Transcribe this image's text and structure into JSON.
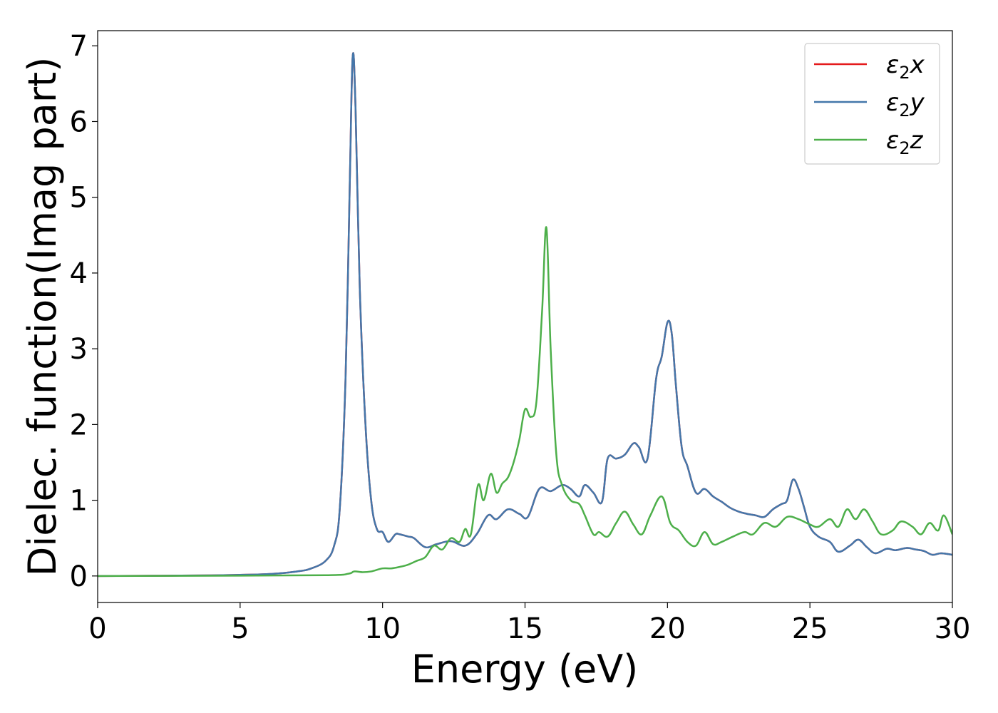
{
  "chart_data": {
    "type": "line",
    "title": "",
    "xlabel": "Energy (eV)",
    "ylabel": "Dielec. function(Imag part)",
    "xlim": [
      0,
      30
    ],
    "ylim": [
      -0.35,
      7.2
    ],
    "xticks": [
      0,
      5,
      10,
      15,
      20,
      25,
      30
    ],
    "yticks": [
      0,
      1,
      2,
      3,
      4,
      5,
      6,
      7
    ],
    "grid": false,
    "legend_position": "top-right",
    "series": [
      {
        "name": "ε₂x",
        "legend_main": "ε",
        "legend_sub": "2",
        "legend_tail": "x",
        "color": "#e41a1c",
        "x": [
          0,
          2,
          4,
          5,
          6,
          7,
          7.5,
          8,
          8.3,
          8.5,
          8.7,
          8.85,
          8.95,
          9.05,
          9.2,
          9.4,
          9.6,
          9.8,
          10.0,
          10.2,
          10.45,
          10.6,
          10.9,
          11.1,
          11.5,
          11.9,
          12.4,
          12.9,
          13.3,
          13.7,
          14.0,
          14.4,
          14.8,
          15.1,
          15.5,
          15.9,
          16.3,
          16.6,
          16.9,
          17.1,
          17.4,
          17.7,
          17.9,
          18.2,
          18.5,
          18.8,
          19.0,
          19.3,
          19.6,
          19.8,
          20.0,
          20.15,
          20.3,
          20.5,
          20.7,
          21.0,
          21.3,
          21.6,
          21.9,
          22.2,
          22.5,
          22.8,
          23.1,
          23.4,
          23.7,
          24.0,
          24.2,
          24.4,
          24.6,
          24.8,
          25.0,
          25.3,
          25.7,
          26.0,
          26.4,
          26.7,
          27.0,
          27.3,
          27.7,
          28.0,
          28.4,
          28.7,
          29.0,
          29.3,
          29.6,
          30.0
        ],
        "y": [
          0,
          0.003,
          0.008,
          0.015,
          0.025,
          0.06,
          0.1,
          0.2,
          0.4,
          0.9,
          2.6,
          5.2,
          6.85,
          6.2,
          3.8,
          2.0,
          1.0,
          0.62,
          0.58,
          0.45,
          0.55,
          0.55,
          0.52,
          0.5,
          0.38,
          0.42,
          0.46,
          0.4,
          0.55,
          0.8,
          0.75,
          0.88,
          0.82,
          0.78,
          1.15,
          1.12,
          1.2,
          1.15,
          1.05,
          1.2,
          1.1,
          0.98,
          1.55,
          1.55,
          1.6,
          1.75,
          1.7,
          1.55,
          2.6,
          2.9,
          3.35,
          3.2,
          2.5,
          1.7,
          1.45,
          1.1,
          1.15,
          1.05,
          0.98,
          0.9,
          0.85,
          0.82,
          0.8,
          0.78,
          0.88,
          0.95,
          1.0,
          1.27,
          1.15,
          0.9,
          0.65,
          0.52,
          0.45,
          0.32,
          0.4,
          0.48,
          0.38,
          0.3,
          0.36,
          0.34,
          0.37,
          0.35,
          0.33,
          0.28,
          0.3,
          0.28
        ]
      },
      {
        "name": "ε₂y",
        "legend_main": "ε",
        "legend_sub": "2",
        "legend_tail": "y",
        "color": "#4477aa",
        "x": [
          0,
          2,
          4,
          5,
          6,
          7,
          7.5,
          8,
          8.3,
          8.5,
          8.7,
          8.85,
          8.95,
          9.05,
          9.2,
          9.4,
          9.6,
          9.8,
          10.0,
          10.2,
          10.45,
          10.6,
          10.9,
          11.1,
          11.5,
          11.9,
          12.4,
          12.9,
          13.3,
          13.7,
          14.0,
          14.4,
          14.8,
          15.1,
          15.5,
          15.9,
          16.3,
          16.6,
          16.9,
          17.1,
          17.4,
          17.7,
          17.9,
          18.2,
          18.5,
          18.8,
          19.0,
          19.3,
          19.6,
          19.8,
          20.0,
          20.15,
          20.3,
          20.5,
          20.7,
          21.0,
          21.3,
          21.6,
          21.9,
          22.2,
          22.5,
          22.8,
          23.1,
          23.4,
          23.7,
          24.0,
          24.2,
          24.4,
          24.6,
          24.8,
          25.0,
          25.3,
          25.7,
          26.0,
          26.4,
          26.7,
          27.0,
          27.3,
          27.7,
          28.0,
          28.4,
          28.7,
          29.0,
          29.3,
          29.6,
          30.0
        ],
        "y": [
          0,
          0.003,
          0.008,
          0.015,
          0.025,
          0.06,
          0.1,
          0.2,
          0.4,
          0.9,
          2.6,
          5.2,
          6.85,
          6.2,
          3.8,
          2.0,
          1.0,
          0.62,
          0.58,
          0.45,
          0.55,
          0.55,
          0.52,
          0.5,
          0.38,
          0.42,
          0.46,
          0.4,
          0.55,
          0.8,
          0.75,
          0.88,
          0.82,
          0.78,
          1.15,
          1.12,
          1.2,
          1.15,
          1.05,
          1.2,
          1.1,
          0.98,
          1.55,
          1.55,
          1.6,
          1.75,
          1.7,
          1.55,
          2.6,
          2.9,
          3.35,
          3.2,
          2.5,
          1.7,
          1.45,
          1.1,
          1.15,
          1.05,
          0.98,
          0.9,
          0.85,
          0.82,
          0.8,
          0.78,
          0.88,
          0.95,
          1.0,
          1.27,
          1.15,
          0.9,
          0.65,
          0.52,
          0.45,
          0.32,
          0.4,
          0.48,
          0.38,
          0.3,
          0.36,
          0.34,
          0.37,
          0.35,
          0.33,
          0.28,
          0.3,
          0.28
        ]
      },
      {
        "name": "ε₂z",
        "legend_main": "ε",
        "legend_sub": "2",
        "legend_tail": "z",
        "color": "#4daf4a",
        "x": [
          0,
          4,
          8,
          8.8,
          9.0,
          9.3,
          9.6,
          10.0,
          10.3,
          10.6,
          10.9,
          11.2,
          11.5,
          11.8,
          12.1,
          12.4,
          12.7,
          12.9,
          13.1,
          13.35,
          13.55,
          13.8,
          14.0,
          14.2,
          14.4,
          14.6,
          14.8,
          15.0,
          15.2,
          15.4,
          15.6,
          15.75,
          15.9,
          16.1,
          16.3,
          16.6,
          16.9,
          17.1,
          17.4,
          17.6,
          17.9,
          18.2,
          18.5,
          18.8,
          19.1,
          19.4,
          19.8,
          20.1,
          20.4,
          20.7,
          21.0,
          21.3,
          21.6,
          21.9,
          22.3,
          22.7,
          23.0,
          23.4,
          23.8,
          24.2,
          24.6,
          25.0,
          25.3,
          25.7,
          26.0,
          26.3,
          26.6,
          26.9,
          27.2,
          27.5,
          27.9,
          28.2,
          28.6,
          28.9,
          29.2,
          29.5,
          29.7,
          30.0
        ],
        "y": [
          0,
          0.003,
          0.01,
          0.03,
          0.06,
          0.05,
          0.06,
          0.1,
          0.1,
          0.12,
          0.15,
          0.2,
          0.25,
          0.4,
          0.35,
          0.5,
          0.45,
          0.62,
          0.55,
          1.2,
          1.0,
          1.35,
          1.1,
          1.22,
          1.3,
          1.5,
          1.8,
          2.2,
          2.1,
          2.3,
          3.5,
          4.6,
          3.0,
          1.6,
          1.2,
          1.0,
          0.95,
          0.8,
          0.55,
          0.58,
          0.52,
          0.7,
          0.85,
          0.68,
          0.55,
          0.8,
          1.05,
          0.7,
          0.6,
          0.45,
          0.4,
          0.58,
          0.42,
          0.45,
          0.52,
          0.58,
          0.55,
          0.7,
          0.65,
          0.78,
          0.75,
          0.68,
          0.65,
          0.75,
          0.65,
          0.88,
          0.75,
          0.88,
          0.72,
          0.55,
          0.6,
          0.72,
          0.65,
          0.55,
          0.7,
          0.6,
          0.8,
          0.55
        ]
      }
    ]
  }
}
